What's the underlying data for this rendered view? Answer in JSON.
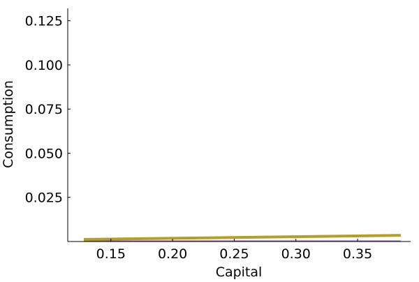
{
  "chart_data": {
    "type": "line",
    "title": "",
    "xlabel": "Capital",
    "ylabel": "Consumption",
    "xlim": [
      0.115,
      0.393
    ],
    "ylim": [
      0.0,
      0.132
    ],
    "x_ticks": [
      0.15,
      0.2,
      0.25,
      0.3,
      0.35
    ],
    "x_tick_labels": [
      "0.15",
      "0.20",
      "0.25",
      "0.30",
      "0.35"
    ],
    "y_ticks": [
      0.025,
      0.05,
      0.075,
      0.1,
      0.125
    ],
    "y_tick_labels": [
      "0.025",
      "0.050",
      "0.075",
      "0.100",
      "0.125"
    ],
    "grid": false,
    "legend": "none",
    "series": [
      {
        "color": "#9b59b6",
        "x": [
          0.128,
          0.385
        ],
        "y": [
          0.0002,
          0.0002
        ]
      },
      {
        "color": "#b5a023",
        "x": [
          0.128,
          0.385
        ],
        "y": [
          0.0012,
          0.0035
        ]
      }
    ]
  }
}
